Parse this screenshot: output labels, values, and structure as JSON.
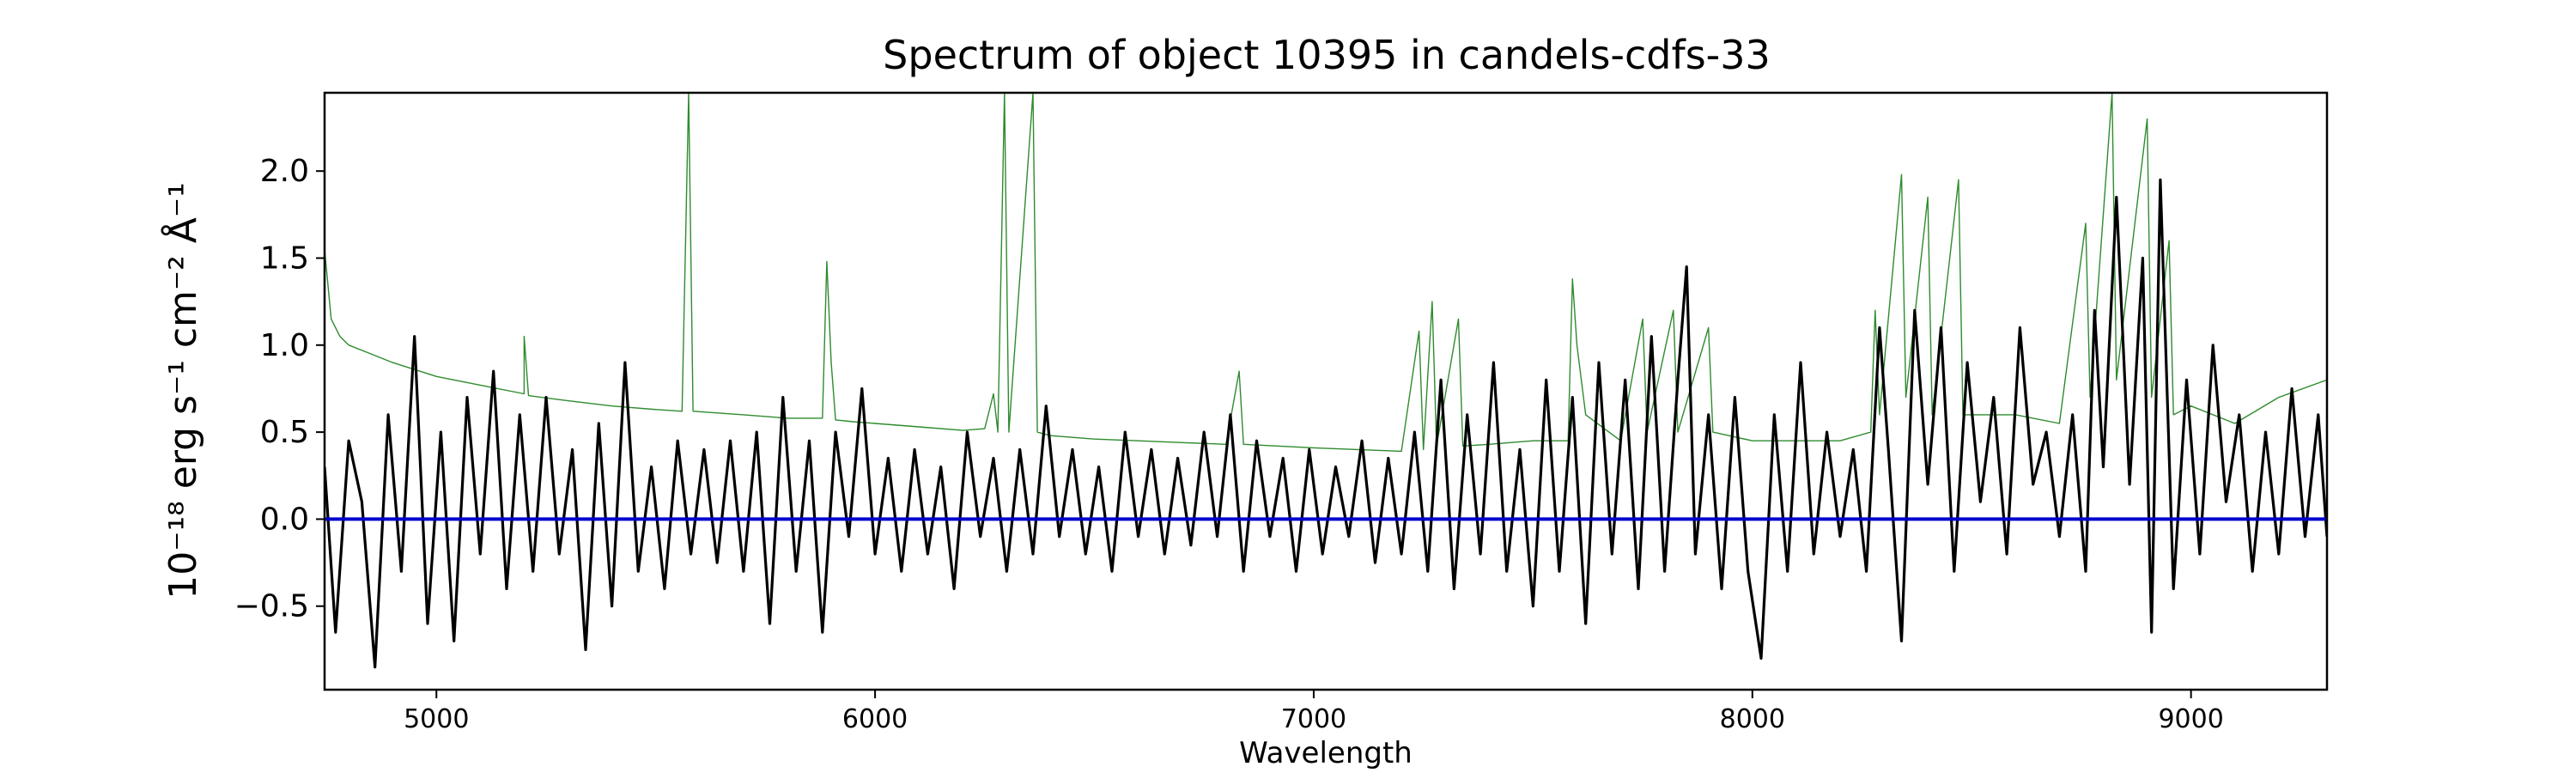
{
  "chart_data": {
    "type": "line",
    "title": "Spectrum of object 10395 in candels-cdfs-33",
    "xlabel": "Wavelength",
    "ylabel": "10⁻¹⁸ erg s⁻¹ cm⁻² Å⁻¹",
    "xlim": [
      4745,
      9310
    ],
    "ylim": [
      -0.98,
      2.45
    ],
    "x_ticks": [
      5000,
      6000,
      7000,
      8000,
      9000
    ],
    "y_ticks": [
      -0.5,
      0.0,
      0.5,
      1.0,
      1.5,
      2.0
    ],
    "grid": false,
    "series": [
      {
        "color": "#2e8b2e",
        "style": "thin",
        "points": [
          [
            4745,
            1.55
          ],
          [
            4760,
            1.15
          ],
          [
            4780,
            1.05
          ],
          [
            4800,
            1.0
          ],
          [
            4850,
            0.95
          ],
          [
            4900,
            0.9
          ],
          [
            4950,
            0.86
          ],
          [
            5000,
            0.82
          ],
          [
            5100,
            0.77
          ],
          [
            5200,
            0.72
          ],
          [
            5200,
            1.05
          ],
          [
            5210,
            0.71
          ],
          [
            5300,
            0.68
          ],
          [
            5400,
            0.65
          ],
          [
            5500,
            0.63
          ],
          [
            5560,
            0.62
          ],
          [
            5575,
            2.45
          ],
          [
            5585,
            0.62
          ],
          [
            5700,
            0.6
          ],
          [
            5800,
            0.58
          ],
          [
            5880,
            0.58
          ],
          [
            5890,
            1.48
          ],
          [
            5900,
            0.9
          ],
          [
            5910,
            0.57
          ],
          [
            5950,
            0.56
          ],
          [
            6000,
            0.55
          ],
          [
            6100,
            0.53
          ],
          [
            6200,
            0.51
          ],
          [
            6250,
            0.52
          ],
          [
            6270,
            0.72
          ],
          [
            6280,
            0.5
          ],
          [
            6295,
            2.45
          ],
          [
            6305,
            0.5
          ],
          [
            6360,
            2.45
          ],
          [
            6370,
            0.5
          ],
          [
            6400,
            0.48
          ],
          [
            6500,
            0.46
          ],
          [
            6600,
            0.45
          ],
          [
            6700,
            0.44
          ],
          [
            6800,
            0.43
          ],
          [
            6830,
            0.85
          ],
          [
            6840,
            0.43
          ],
          [
            7000,
            0.41
          ],
          [
            7100,
            0.4
          ],
          [
            7200,
            0.39
          ],
          [
            7240,
            1.08
          ],
          [
            7250,
            0.4
          ],
          [
            7270,
            1.25
          ],
          [
            7280,
            0.42
          ],
          [
            7330,
            1.15
          ],
          [
            7340,
            0.42
          ],
          [
            7400,
            0.43
          ],
          [
            7500,
            0.45
          ],
          [
            7580,
            0.45
          ],
          [
            7590,
            1.38
          ],
          [
            7600,
            1.0
          ],
          [
            7620,
            0.6
          ],
          [
            7700,
            0.45
          ],
          [
            7750,
            1.15
          ],
          [
            7760,
            0.5
          ],
          [
            7820,
            1.2
          ],
          [
            7830,
            0.5
          ],
          [
            7900,
            1.1
          ],
          [
            7910,
            0.5
          ],
          [
            8000,
            0.45
          ],
          [
            8100,
            0.45
          ],
          [
            8200,
            0.45
          ],
          [
            8270,
            0.5
          ],
          [
            8280,
            1.2
          ],
          [
            8290,
            0.6
          ],
          [
            8340,
            1.98
          ],
          [
            8350,
            0.7
          ],
          [
            8400,
            1.85
          ],
          [
            8410,
            0.6
          ],
          [
            8470,
            1.95
          ],
          [
            8480,
            0.6
          ],
          [
            8600,
            0.6
          ],
          [
            8700,
            0.55
          ],
          [
            8760,
            1.7
          ],
          [
            8770,
            0.7
          ],
          [
            8820,
            2.45
          ],
          [
            8830,
            0.8
          ],
          [
            8900,
            2.3
          ],
          [
            8910,
            0.7
          ],
          [
            8950,
            1.6
          ],
          [
            8960,
            0.6
          ],
          [
            9000,
            0.65
          ],
          [
            9100,
            0.55
          ],
          [
            9200,
            0.7
          ],
          [
            9310,
            0.8
          ]
        ]
      },
      {
        "color": "#000000",
        "style": "thick",
        "points": [
          [
            4745,
            0.3
          ],
          [
            4770,
            -0.65
          ],
          [
            4800,
            0.45
          ],
          [
            4830,
            0.1
          ],
          [
            4860,
            -0.85
          ],
          [
            4890,
            0.6
          ],
          [
            4920,
            -0.3
          ],
          [
            4950,
            1.05
          ],
          [
            4980,
            -0.6
          ],
          [
            5010,
            0.5
          ],
          [
            5040,
            -0.7
          ],
          [
            5070,
            0.7
          ],
          [
            5100,
            -0.2
          ],
          [
            5130,
            0.85
          ],
          [
            5160,
            -0.4
          ],
          [
            5190,
            0.6
          ],
          [
            5220,
            -0.3
          ],
          [
            5250,
            0.7
          ],
          [
            5280,
            -0.2
          ],
          [
            5310,
            0.4
          ],
          [
            5340,
            -0.75
          ],
          [
            5370,
            0.55
          ],
          [
            5400,
            -0.5
          ],
          [
            5430,
            0.9
          ],
          [
            5460,
            -0.3
          ],
          [
            5490,
            0.3
          ],
          [
            5520,
            -0.4
          ],
          [
            5550,
            0.45
          ],
          [
            5580,
            -0.2
          ],
          [
            5610,
            0.4
          ],
          [
            5640,
            -0.25
          ],
          [
            5670,
            0.45
          ],
          [
            5700,
            -0.3
          ],
          [
            5730,
            0.5
          ],
          [
            5760,
            -0.6
          ],
          [
            5790,
            0.7
          ],
          [
            5820,
            -0.3
          ],
          [
            5850,
            0.45
          ],
          [
            5880,
            -0.65
          ],
          [
            5910,
            0.5
          ],
          [
            5940,
            -0.1
          ],
          [
            5970,
            0.75
          ],
          [
            6000,
            -0.2
          ],
          [
            6030,
            0.35
          ],
          [
            6060,
            -0.3
          ],
          [
            6090,
            0.4
          ],
          [
            6120,
            -0.2
          ],
          [
            6150,
            0.3
          ],
          [
            6180,
            -0.4
          ],
          [
            6210,
            0.5
          ],
          [
            6240,
            -0.1
          ],
          [
            6270,
            0.35
          ],
          [
            6300,
            -0.3
          ],
          [
            6330,
            0.4
          ],
          [
            6360,
            -0.2
          ],
          [
            6390,
            0.65
          ],
          [
            6420,
            -0.1
          ],
          [
            6450,
            0.4
          ],
          [
            6480,
            -0.2
          ],
          [
            6510,
            0.3
          ],
          [
            6540,
            -0.3
          ],
          [
            6570,
            0.5
          ],
          [
            6600,
            -0.1
          ],
          [
            6630,
            0.4
          ],
          [
            6660,
            -0.2
          ],
          [
            6690,
            0.35
          ],
          [
            6720,
            -0.15
          ],
          [
            6750,
            0.5
          ],
          [
            6780,
            -0.1
          ],
          [
            6810,
            0.6
          ],
          [
            6840,
            -0.3
          ],
          [
            6870,
            0.45
          ],
          [
            6900,
            -0.1
          ],
          [
            6930,
            0.35
          ],
          [
            6960,
            -0.3
          ],
          [
            6990,
            0.4
          ],
          [
            7020,
            -0.2
          ],
          [
            7050,
            0.3
          ],
          [
            7080,
            -0.1
          ],
          [
            7110,
            0.45
          ],
          [
            7140,
            -0.25
          ],
          [
            7170,
            0.35
          ],
          [
            7200,
            -0.2
          ],
          [
            7230,
            0.5
          ],
          [
            7260,
            -0.3
          ],
          [
            7290,
            0.8
          ],
          [
            7320,
            -0.4
          ],
          [
            7350,
            0.6
          ],
          [
            7380,
            -0.2
          ],
          [
            7410,
            0.9
          ],
          [
            7440,
            -0.3
          ],
          [
            7470,
            0.4
          ],
          [
            7500,
            -0.5
          ],
          [
            7530,
            0.8
          ],
          [
            7560,
            -0.3
          ],
          [
            7590,
            0.7
          ],
          [
            7620,
            -0.6
          ],
          [
            7650,
            0.9
          ],
          [
            7680,
            -0.2
          ],
          [
            7710,
            0.8
          ],
          [
            7740,
            -0.4
          ],
          [
            7770,
            1.05
          ],
          [
            7800,
            -0.3
          ],
          [
            7830,
            0.8
          ],
          [
            7850,
            1.45
          ],
          [
            7870,
            -0.2
          ],
          [
            7900,
            0.6
          ],
          [
            7930,
            -0.4
          ],
          [
            7960,
            0.7
          ],
          [
            7990,
            -0.3
          ],
          [
            8020,
            -0.8
          ],
          [
            8050,
            0.6
          ],
          [
            8080,
            -0.3
          ],
          [
            8110,
            0.9
          ],
          [
            8140,
            -0.2
          ],
          [
            8170,
            0.5
          ],
          [
            8200,
            -0.1
          ],
          [
            8230,
            0.4
          ],
          [
            8260,
            -0.3
          ],
          [
            8290,
            1.1
          ],
          [
            8310,
            0.4
          ],
          [
            8340,
            -0.7
          ],
          [
            8370,
            1.2
          ],
          [
            8400,
            0.2
          ],
          [
            8430,
            1.1
          ],
          [
            8460,
            -0.3
          ],
          [
            8490,
            0.9
          ],
          [
            8520,
            0.1
          ],
          [
            8550,
            0.7
          ],
          [
            8580,
            -0.2
          ],
          [
            8610,
            1.1
          ],
          [
            8640,
            0.2
          ],
          [
            8670,
            0.5
          ],
          [
            8700,
            -0.1
          ],
          [
            8730,
            0.6
          ],
          [
            8760,
            -0.3
          ],
          [
            8780,
            1.2
          ],
          [
            8800,
            0.3
          ],
          [
            8830,
            1.85
          ],
          [
            8860,
            0.2
          ],
          [
            8890,
            1.5
          ],
          [
            8910,
            -0.65
          ],
          [
            8930,
            1.95
          ],
          [
            8960,
            -0.4
          ],
          [
            8990,
            0.8
          ],
          [
            9020,
            -0.2
          ],
          [
            9050,
            1.0
          ],
          [
            9080,
            0.1
          ],
          [
            9110,
            0.6
          ],
          [
            9140,
            -0.3
          ],
          [
            9170,
            0.5
          ],
          [
            9200,
            -0.2
          ],
          [
            9230,
            0.75
          ],
          [
            9260,
            -0.1
          ],
          [
            9290,
            0.6
          ],
          [
            9310,
            -0.1
          ]
        ]
      },
      {
        "color": "#0000cc",
        "style": "zero",
        "points": [
          [
            4745,
            0.0
          ],
          [
            9310,
            0.0
          ]
        ]
      }
    ]
  }
}
